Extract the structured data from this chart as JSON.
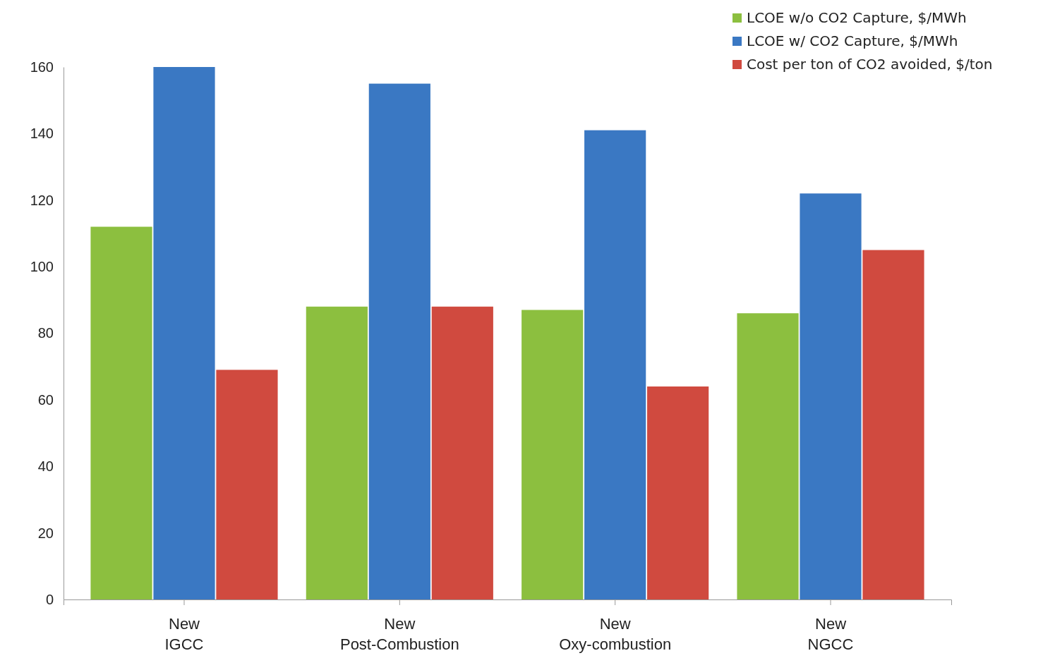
{
  "chart_data": {
    "type": "bar",
    "categories": [
      "New IGCC",
      "New Post-Combustion",
      "New Oxy-combustion",
      "New NGCC"
    ],
    "series": [
      {
        "name": "LCOE w/o CO2 Capture, $/MWh",
        "color": "#8cbf3f",
        "values": [
          112,
          88,
          87,
          86
        ]
      },
      {
        "name": "LCOE w/ CO2 Capture, $/MWh",
        "color": "#3a78c3",
        "values": [
          160,
          155,
          141,
          122
        ]
      },
      {
        "name": "Cost per ton of CO2 avoided, $/ton",
        "color": "#d04a3f",
        "values": [
          69,
          88,
          64,
          105
        ]
      }
    ],
    "ylim": [
      0,
      160
    ],
    "yticks": [
      0,
      20,
      40,
      60,
      80,
      100,
      120,
      140,
      160
    ],
    "grid": false,
    "legend": "top right"
  }
}
